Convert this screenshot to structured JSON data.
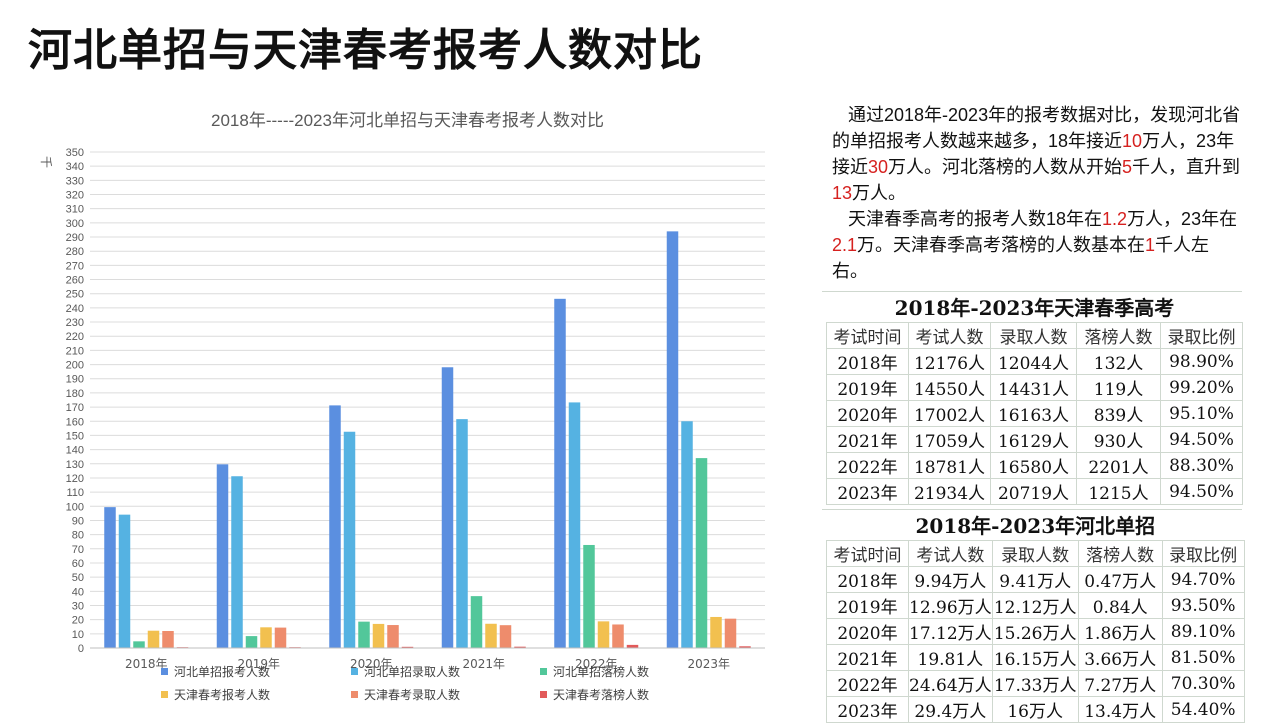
{
  "page_title": "河北单招与天津春考报考人数对比",
  "description": {
    "p1": [
      {
        "t": "通过2018年-2023年的报考数据对比，发现河北省的单招报考人数越来越多，18年接近",
        "hl": false
      },
      {
        "t": "10",
        "hl": true
      },
      {
        "t": "万人，23年接近",
        "hl": false
      },
      {
        "t": "30",
        "hl": true
      },
      {
        "t": "万人。河北落榜的人数从开始",
        "hl": false
      },
      {
        "t": "5",
        "hl": true
      },
      {
        "t": "千人，直升到",
        "hl": false
      },
      {
        "t": "13",
        "hl": true
      },
      {
        "t": "万人。",
        "hl": false
      }
    ],
    "p2": [
      {
        "t": "天津春季高考的报考人数18年在",
        "hl": false
      },
      {
        "t": "1.2",
        "hl": true
      },
      {
        "t": "万人，23年在",
        "hl": false
      },
      {
        "t": "2.1",
        "hl": true
      },
      {
        "t": "万。天津春季高考落榜的人数基本在",
        "hl": false
      },
      {
        "t": "1",
        "hl": true
      },
      {
        "t": "千人左右。",
        "hl": false
      }
    ]
  },
  "chart_data": {
    "type": "bar",
    "title": "2018年-----2023年河北单招与天津春考报考人数对比",
    "ylabel": "千",
    "ylim": [
      0,
      350
    ],
    "ytick_step": 10,
    "grid": true,
    "legend_position": "bottom",
    "categories": [
      "2018年",
      "2019年",
      "2020年",
      "2021年",
      "2022年",
      "2023年"
    ],
    "series": [
      {
        "name": "河北单招报考人数",
        "color": "#5b8fe0",
        "values": [
          99.4,
          129.6,
          171.2,
          198.1,
          246.4,
          294
        ]
      },
      {
        "name": "河北单招录取人数",
        "color": "#55b2e2",
        "values": [
          94.1,
          121.2,
          152.6,
          161.5,
          173.3,
          160
        ]
      },
      {
        "name": "河北单招落榜人数",
        "color": "#52c79a",
        "values": [
          4.7,
          8.4,
          18.6,
          36.6,
          72.7,
          134
        ]
      },
      {
        "name": "天津春考报考人数",
        "color": "#f2c04f",
        "values": [
          12.2,
          14.6,
          17.0,
          17.1,
          18.8,
          21.9
        ]
      },
      {
        "name": "天津春考录取人数",
        "color": "#ee8c6c",
        "values": [
          12.0,
          14.4,
          16.2,
          16.1,
          16.6,
          20.7
        ]
      },
      {
        "name": "天津春考落榜人数",
        "color": "#e25a5a",
        "values": [
          0.13,
          0.12,
          0.84,
          0.93,
          2.2,
          1.2
        ]
      }
    ]
  },
  "table_tianjin": {
    "title": "2018年-2023年天津春季高考",
    "headers": [
      "考试时间",
      "考试人数",
      "录取人数",
      "落榜人数",
      "录取比例"
    ],
    "rows": [
      [
        "2018年",
        "12176人",
        "12044人",
        "132人",
        "98.90%"
      ],
      [
        "2019年",
        "14550人",
        "14431人",
        "119人",
        "99.20%"
      ],
      [
        "2020年",
        "17002人",
        "16163人",
        "839人",
        "95.10%"
      ],
      [
        "2021年",
        "17059人",
        "16129人",
        "930人",
        "94.50%"
      ],
      [
        "2022年",
        "18781人",
        "16580人",
        "2201人",
        "88.30%"
      ],
      [
        "2023年",
        "21934人",
        "20719人",
        "1215人",
        "94.50%"
      ]
    ]
  },
  "table_hebei": {
    "title": "2018年-2023年河北单招",
    "headers": [
      "考试时间",
      "考试人数",
      "录取人数",
      "落榜人数",
      "录取比例"
    ],
    "rows": [
      [
        "2018年",
        "9.94万人",
        "9.41万人",
        "0.47万人",
        "94.70%"
      ],
      [
        "2019年",
        "12.96万人",
        "12.12万人",
        "0.84人",
        "93.50%"
      ],
      [
        "2020年",
        "17.12万人",
        "15.26万人",
        "1.86万人",
        "89.10%"
      ],
      [
        "2021年",
        "19.81人",
        "16.15万人",
        "3.66万人",
        "81.50%"
      ],
      [
        "2022年",
        "24.64万人",
        "17.33万人",
        "7.27万人",
        "70.30%"
      ],
      [
        "2023年",
        "29.4万人",
        "16万人",
        "13.4万人",
        "54.40%"
      ]
    ]
  }
}
